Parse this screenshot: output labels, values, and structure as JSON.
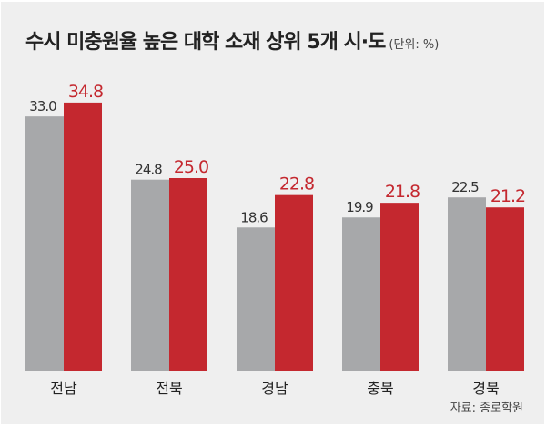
{
  "chart_data": {
    "type": "bar",
    "title": "수시 미충원율 높은 대학 소재 상위 5개 시·도",
    "unit": "(단위: %)",
    "categories": [
      "전남",
      "전북",
      "경남",
      "충북",
      "경북"
    ],
    "series": [
      {
        "name": "series-1",
        "color": "#a7a8aa",
        "label_color": "#333333",
        "values": [
          33.0,
          24.8,
          18.6,
          19.9,
          22.5
        ]
      },
      {
        "name": "series-2",
        "color": "#c4282f",
        "label_color": "#c4282f",
        "values": [
          34.8,
          25.0,
          22.8,
          21.8,
          21.2
        ]
      }
    ],
    "ylim": [
      0,
      40
    ],
    "grid": false,
    "source": "자료: 종로학원"
  }
}
